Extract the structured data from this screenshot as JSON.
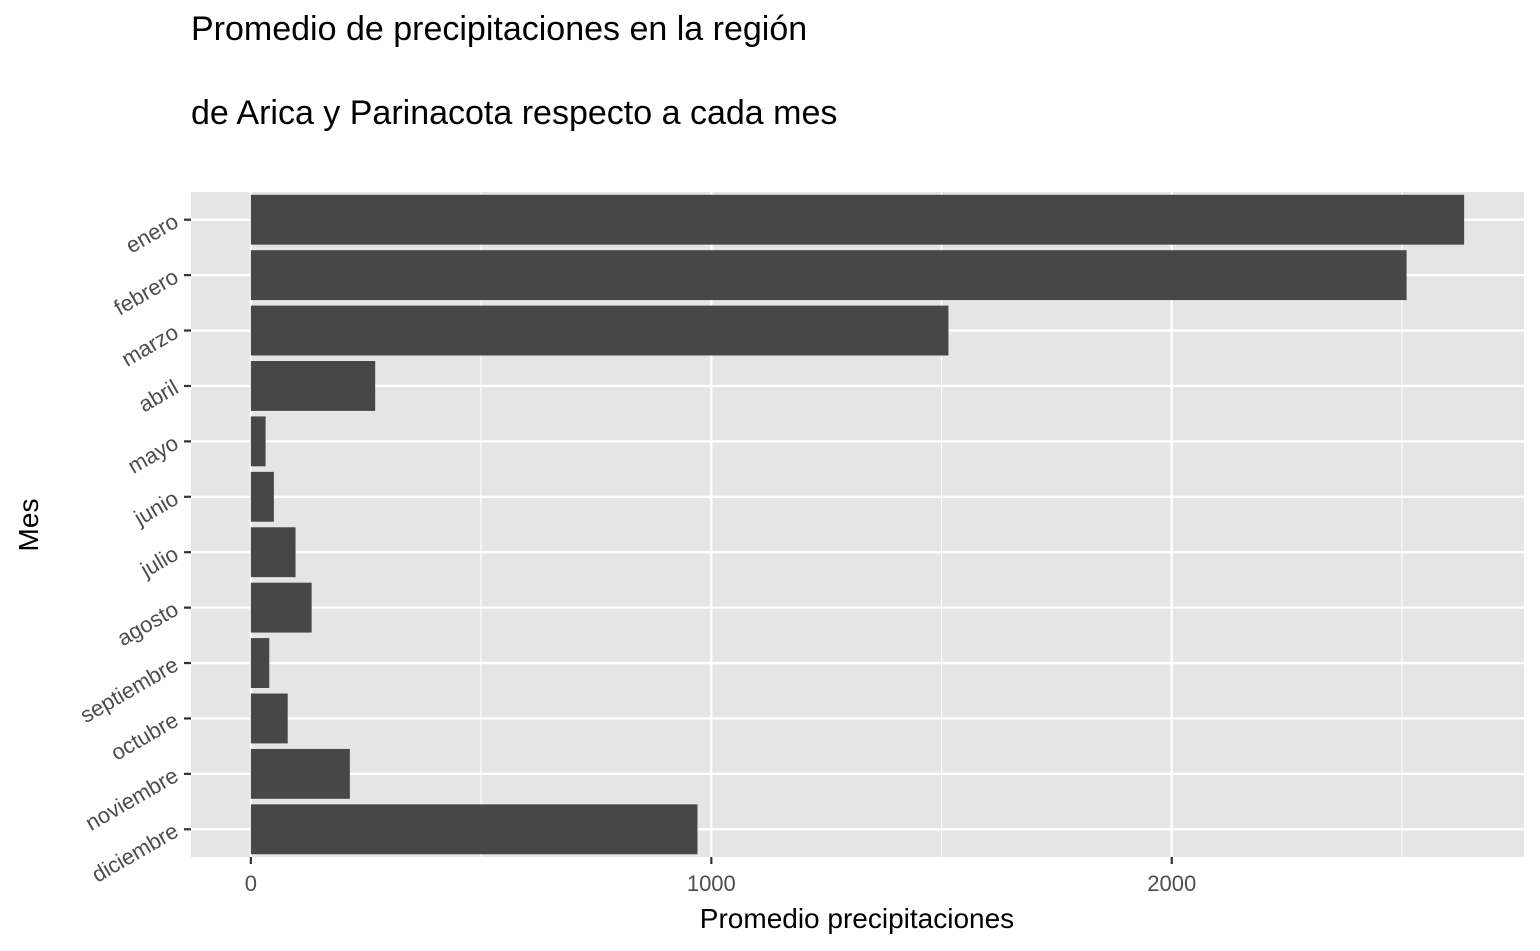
{
  "chart_data": {
    "type": "bar",
    "orientation": "horizontal",
    "title_lines": [
      "Promedio de precipitaciones en la región",
      "de Arica y Parinacota respecto a cada mes"
    ],
    "xlabel": "Promedio precipitaciones",
    "ylabel": "Mes",
    "categories": [
      "enero",
      "febrero",
      "marzo",
      "abril",
      "mayo",
      "junio",
      "julio",
      "agosto",
      "septiembre",
      "octubre",
      "noviembre",
      "diciembre"
    ],
    "values": [
      2635,
      2510,
      1515,
      270,
      32,
      50,
      97,
      132,
      40,
      80,
      215,
      970
    ],
    "xlim": [
      -130,
      2765
    ],
    "x_ticks": [
      0,
      1000,
      2000
    ],
    "x_tick_labels": [
      "0",
      "1000",
      "2000"
    ],
    "grid": true,
    "bar_color": "#474747",
    "panel_color": "#e5e5e5",
    "grid_color": "#ffffff"
  }
}
